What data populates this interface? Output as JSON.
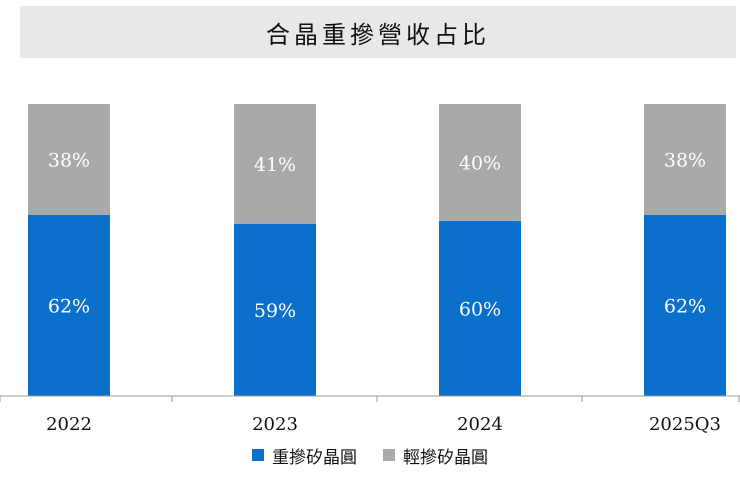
{
  "chart_data": {
    "type": "bar",
    "stacked": true,
    "title": "合晶重摻營收占比",
    "categories": [
      "2022",
      "2023",
      "2024",
      "2025Q3"
    ],
    "series": [
      {
        "name": "重摻矽晶圓",
        "values": [
          62,
          59,
          60,
          62
        ],
        "labels": [
          "62%",
          "59%",
          "60%",
          "62%"
        ],
        "color": "#0b6fcc"
      },
      {
        "name": "輕摻矽晶圓",
        "values": [
          38,
          41,
          40,
          38
        ],
        "labels": [
          "38%",
          "41%",
          "40%",
          "38%"
        ],
        "color": "#a9a9a9"
      }
    ],
    "ylim": [
      0,
      100
    ],
    "grid": false,
    "legend_position": "bottom"
  }
}
